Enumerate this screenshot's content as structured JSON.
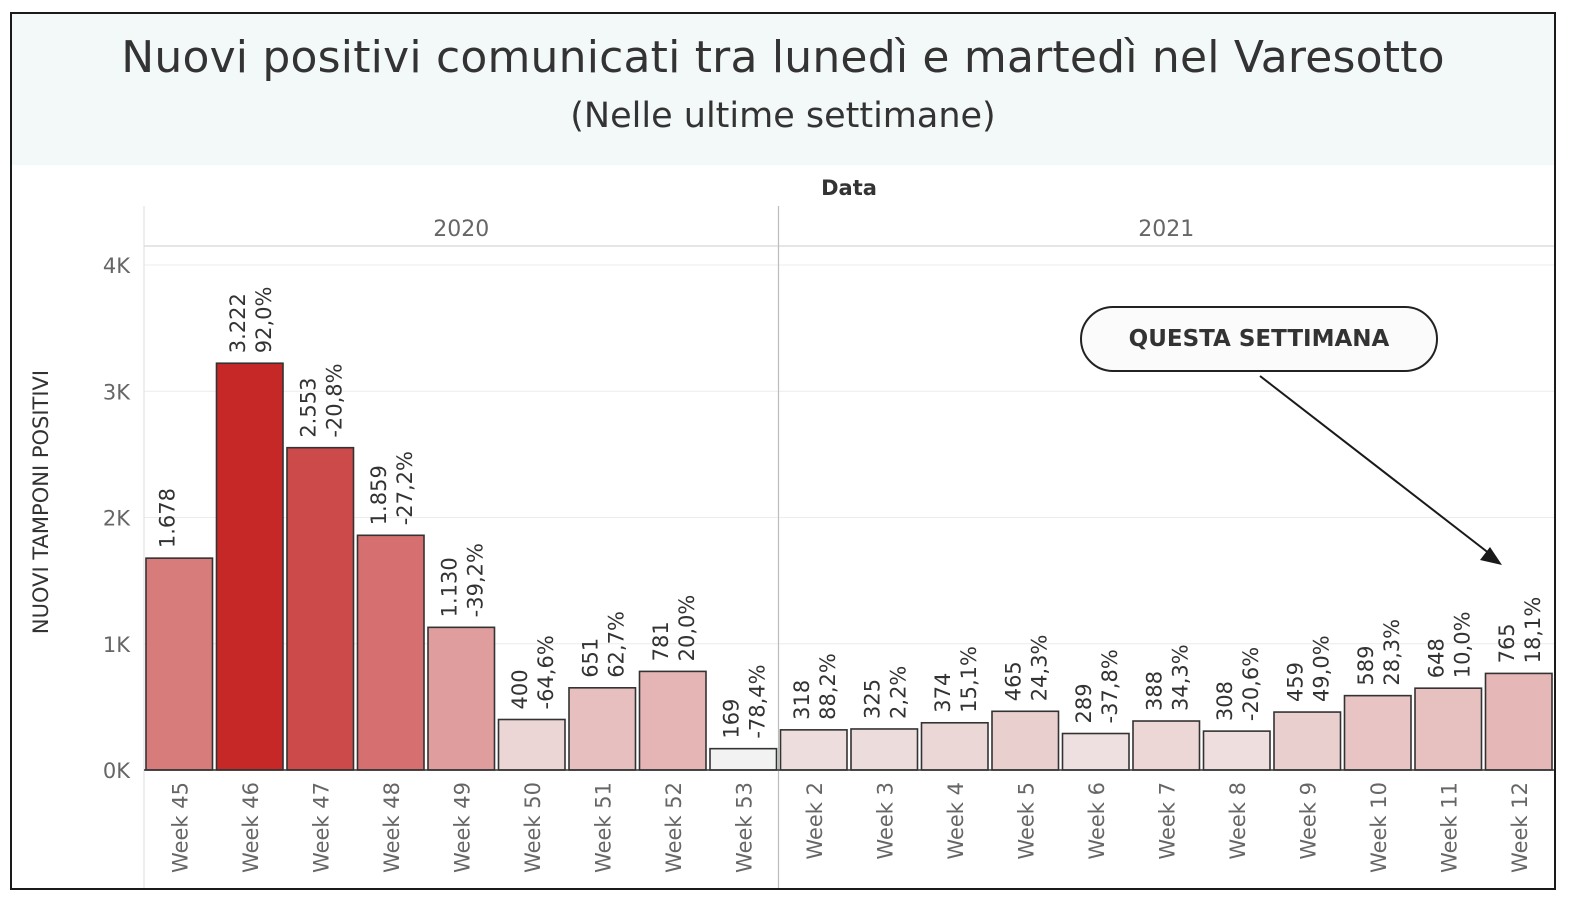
{
  "header": {
    "title": "Nuovi positivi comunicati tra lunedì e martedì nel Varesotto",
    "subtitle": "(Nelle ultime settimane)"
  },
  "callout": {
    "text": "QUESTA SETTIMANA"
  },
  "chart_data": {
    "type": "bar",
    "title": "Nuovi positivi comunicati tra lunedì e martedì nel Varesotto",
    "subtitle": "(Nelle ultime settimane)",
    "column_header": "Data",
    "ylabel": "NUOVI TAMPONI POSITIVI",
    "ylim": [
      0,
      4000
    ],
    "y_ticks": [
      "0K",
      "1K",
      "2K",
      "3K",
      "4K"
    ],
    "y_tick_values": [
      0,
      1000,
      2000,
      3000,
      4000
    ],
    "grid": true,
    "color_scale": {
      "low": "#f2f2f2",
      "high": "#c62828"
    },
    "groups": [
      {
        "name": "2020",
        "categories": [
          "Week 45",
          "Week 46",
          "Week 47",
          "Week 48",
          "Week 49",
          "Week 50",
          "Week 51",
          "Week 52",
          "Week 53"
        ]
      },
      {
        "name": "2021",
        "categories": [
          "Week 2",
          "Week 3",
          "Week 4",
          "Week 5",
          "Week 6",
          "Week 7",
          "Week 8",
          "Week 9",
          "Week 10",
          "Week 11",
          "Week 12"
        ]
      }
    ],
    "categories": [
      "Week 45",
      "Week 46",
      "Week 47",
      "Week 48",
      "Week 49",
      "Week 50",
      "Week 51",
      "Week 52",
      "Week 53",
      "Week 2",
      "Week 3",
      "Week 4",
      "Week 5",
      "Week 6",
      "Week 7",
      "Week 8",
      "Week 9",
      "Week 10",
      "Week 11",
      "Week 12"
    ],
    "values": [
      1678,
      3222,
      2553,
      1859,
      1130,
      400,
      651,
      781,
      169,
      318,
      325,
      374,
      465,
      289,
      388,
      308,
      459,
      589,
      648,
      765
    ],
    "value_labels": [
      "1.678",
      "3.222",
      "2.553",
      "1.859",
      "1.130",
      "400",
      "651",
      "781",
      "169",
      "318",
      "325",
      "374",
      "465",
      "289",
      "388",
      "308",
      "459",
      "589",
      "648",
      "765"
    ],
    "change_labels": [
      "",
      "92,0%",
      "-20,8%",
      "-27,2%",
      "-39,2%",
      "-64,6%",
      "62,7%",
      "20,0%",
      "-78,4%",
      "88,2%",
      "2,2%",
      "15,1%",
      "24,3%",
      "-37,8%",
      "34,3%",
      "-20,6%",
      "49,0%",
      "28,3%",
      "10,0%",
      "18,1%"
    ]
  }
}
